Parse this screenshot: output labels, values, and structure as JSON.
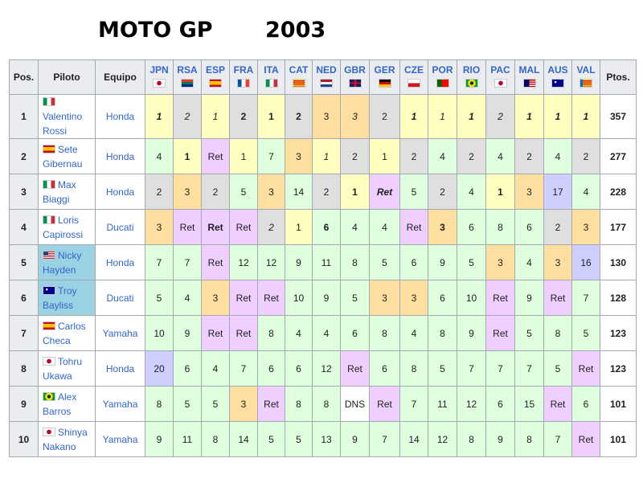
{
  "title": {
    "main": "MOTO GP",
    "year": "2003"
  },
  "headers": {
    "pos": "Pos.",
    "rider": "Piloto",
    "team": "Equipo",
    "points": "Ptos."
  },
  "races": [
    {
      "code": "JPN",
      "flag": "japan-flag-icon"
    },
    {
      "code": "RSA",
      "flag": "south-africa-flag-icon"
    },
    {
      "code": "ESP",
      "flag": "spain-flag-icon"
    },
    {
      "code": "FRA",
      "flag": "france-flag-icon"
    },
    {
      "code": "ITA",
      "flag": "italy-flag-icon"
    },
    {
      "code": "CAT",
      "flag": "catalonia-flag-icon"
    },
    {
      "code": "NED",
      "flag": "netherlands-flag-icon"
    },
    {
      "code": "GBR",
      "flag": "uk-flag-icon"
    },
    {
      "code": "GER",
      "flag": "germany-flag-icon"
    },
    {
      "code": "CZE",
      "flag": "czech-flag-icon"
    },
    {
      "code": "POR",
      "flag": "portugal-flag-icon"
    },
    {
      "code": "RIO",
      "flag": "brazil-flag-icon"
    },
    {
      "code": "PAC",
      "flag": "japan-flag-icon"
    },
    {
      "code": "MAL",
      "flag": "malaysia-flag-icon"
    },
    {
      "code": "AUS",
      "flag": "australia-flag-icon"
    },
    {
      "code": "VAL",
      "flag": "valencia-flag-icon"
    }
  ],
  "legend_colors": {
    "first": "#ffffbf",
    "second": "#dfdfdf",
    "third": "#ffdf9f",
    "points": "#dfffdf",
    "retired": "#efcfff",
    "no_points": "#cfcfff",
    "dns": "#ffffff",
    "rookie": "#9bd2e3"
  },
  "rows": [
    {
      "pos": "1",
      "first": "Valentino",
      "last": "Rossi",
      "flag": "italy-flag-icon",
      "team": "Honda",
      "points": "357",
      "results": [
        [
          "1",
          "c1",
          "bi"
        ],
        [
          "2",
          "c2",
          "i"
        ],
        [
          "1",
          "c1",
          "i"
        ],
        [
          "2",
          "c2",
          "b"
        ],
        [
          "1",
          "c1",
          "b"
        ],
        [
          "2",
          "c2",
          "b"
        ],
        [
          "3",
          "c3",
          ""
        ],
        [
          "3",
          "c3",
          "i"
        ],
        [
          "2",
          "c2",
          ""
        ],
        [
          "1",
          "c1",
          "bi"
        ],
        [
          "1",
          "c1",
          "i"
        ],
        [
          "1",
          "c1",
          "bi"
        ],
        [
          "2",
          "c2",
          "i"
        ],
        [
          "1",
          "c1",
          "bi"
        ],
        [
          "1",
          "c1",
          "bi"
        ],
        [
          "1",
          "c1",
          "bi"
        ]
      ]
    },
    {
      "pos": "2",
      "first": "Sete",
      "last": "Gibernau",
      "flag": "spain-flag-icon",
      "team": "Honda",
      "points": "277",
      "results": [
        [
          "4",
          "cp",
          ""
        ],
        [
          "1",
          "c1",
          "b"
        ],
        [
          "Ret",
          "cr",
          ""
        ],
        [
          "1",
          "c1",
          ""
        ],
        [
          "7",
          "cp",
          ""
        ],
        [
          "3",
          "c3",
          ""
        ],
        [
          "1",
          "c1",
          "i"
        ],
        [
          "2",
          "c2",
          ""
        ],
        [
          "1",
          "c1",
          ""
        ],
        [
          "2",
          "c2",
          ""
        ],
        [
          "4",
          "cp",
          ""
        ],
        [
          "2",
          "c2",
          ""
        ],
        [
          "4",
          "cp",
          ""
        ],
        [
          "2",
          "c2",
          ""
        ],
        [
          "4",
          "cp",
          ""
        ],
        [
          "2",
          "c2",
          ""
        ]
      ]
    },
    {
      "pos": "3",
      "first": "Max",
      "last": "Biaggi",
      "flag": "italy-flag-icon",
      "team": "Honda",
      "points": "228",
      "results": [
        [
          "2",
          "c2",
          ""
        ],
        [
          "3",
          "c3",
          ""
        ],
        [
          "2",
          "c2",
          ""
        ],
        [
          "5",
          "cp",
          ""
        ],
        [
          "3",
          "c3",
          ""
        ],
        [
          "14",
          "cp",
          ""
        ],
        [
          "2",
          "c2",
          ""
        ],
        [
          "1",
          "c1",
          "b"
        ],
        [
          "Ret",
          "cr",
          "bi"
        ],
        [
          "5",
          "cp",
          ""
        ],
        [
          "2",
          "c2",
          ""
        ],
        [
          "4",
          "cp",
          ""
        ],
        [
          "1",
          "c1",
          "b"
        ],
        [
          "3",
          "c3",
          ""
        ],
        [
          "17",
          "cn",
          ""
        ],
        [
          "4",
          "cp",
          ""
        ]
      ]
    },
    {
      "pos": "4",
      "first": "Loris",
      "last": "Capirossi",
      "flag": "italy-flag-icon",
      "team": "Ducati",
      "points": "177",
      "results": [
        [
          "3",
          "c3",
          ""
        ],
        [
          "Ret",
          "cr",
          ""
        ],
        [
          "Ret",
          "cr",
          "b"
        ],
        [
          "Ret",
          "cr",
          ""
        ],
        [
          "2",
          "c2",
          "i"
        ],
        [
          "1",
          "c1",
          ""
        ],
        [
          "6",
          "cp",
          "b"
        ],
        [
          "4",
          "cp",
          ""
        ],
        [
          "4",
          "cp",
          ""
        ],
        [
          "Ret",
          "cr",
          ""
        ],
        [
          "3",
          "c3",
          "b"
        ],
        [
          "6",
          "cp",
          ""
        ],
        [
          "8",
          "cp",
          ""
        ],
        [
          "6",
          "cp",
          ""
        ],
        [
          "2",
          "c2",
          ""
        ],
        [
          "3",
          "c3",
          ""
        ]
      ]
    },
    {
      "pos": "5",
      "first": "Nicky",
      "last": "Hayden",
      "flag": "usa-flag-icon",
      "team": "Honda",
      "points": "130",
      "rookie": true,
      "results": [
        [
          "7",
          "cp",
          ""
        ],
        [
          "7",
          "cp",
          ""
        ],
        [
          "Ret",
          "cr",
          ""
        ],
        [
          "12",
          "cp",
          ""
        ],
        [
          "12",
          "cp",
          ""
        ],
        [
          "9",
          "cp",
          ""
        ],
        [
          "11",
          "cp",
          ""
        ],
        [
          "8",
          "cp",
          ""
        ],
        [
          "5",
          "cp",
          ""
        ],
        [
          "6",
          "cp",
          ""
        ],
        [
          "9",
          "cp",
          ""
        ],
        [
          "5",
          "cp",
          ""
        ],
        [
          "3",
          "c3",
          ""
        ],
        [
          "4",
          "cp",
          ""
        ],
        [
          "3",
          "c3",
          ""
        ],
        [
          "16",
          "cn",
          ""
        ]
      ]
    },
    {
      "pos": "6",
      "first": "Troy",
      "last": "Bayliss",
      "flag": "australia-flag-icon",
      "team": "Ducati",
      "points": "128",
      "rookie": true,
      "results": [
        [
          "5",
          "cp",
          ""
        ],
        [
          "4",
          "cp",
          ""
        ],
        [
          "3",
          "c3",
          ""
        ],
        [
          "Ret",
          "cr",
          ""
        ],
        [
          "Ret",
          "cr",
          ""
        ],
        [
          "10",
          "cp",
          ""
        ],
        [
          "9",
          "cp",
          ""
        ],
        [
          "5",
          "cp",
          ""
        ],
        [
          "3",
          "c3",
          ""
        ],
        [
          "3",
          "c3",
          ""
        ],
        [
          "6",
          "cp",
          ""
        ],
        [
          "10",
          "cp",
          ""
        ],
        [
          "Ret",
          "cr",
          ""
        ],
        [
          "9",
          "cp",
          ""
        ],
        [
          "Ret",
          "cr",
          ""
        ],
        [
          "7",
          "cp",
          ""
        ]
      ]
    },
    {
      "pos": "7",
      "first": "Carlos",
      "last": "Checa",
      "flag": "spain-flag-icon",
      "team": "Yamaha",
      "points": "123",
      "results": [
        [
          "10",
          "cp",
          ""
        ],
        [
          "9",
          "cp",
          ""
        ],
        [
          "Ret",
          "cr",
          ""
        ],
        [
          "Ret",
          "cr",
          ""
        ],
        [
          "8",
          "cp",
          ""
        ],
        [
          "4",
          "cp",
          ""
        ],
        [
          "4",
          "cp",
          ""
        ],
        [
          "6",
          "cp",
          ""
        ],
        [
          "8",
          "cp",
          ""
        ],
        [
          "4",
          "cp",
          ""
        ],
        [
          "8",
          "cp",
          ""
        ],
        [
          "9",
          "cp",
          ""
        ],
        [
          "Ret",
          "cr",
          ""
        ],
        [
          "5",
          "cp",
          ""
        ],
        [
          "8",
          "cp",
          ""
        ],
        [
          "5",
          "cp",
          ""
        ]
      ]
    },
    {
      "pos": "8",
      "first": "Tohru",
      "last": "Ukawa",
      "flag": "japan-flag-icon",
      "team": "Honda",
      "points": "123",
      "results": [
        [
          "20",
          "cn",
          ""
        ],
        [
          "6",
          "cp",
          ""
        ],
        [
          "4",
          "cp",
          ""
        ],
        [
          "7",
          "cp",
          ""
        ],
        [
          "6",
          "cp",
          ""
        ],
        [
          "6",
          "cp",
          ""
        ],
        [
          "12",
          "cp",
          ""
        ],
        [
          "Ret",
          "cr",
          ""
        ],
        [
          "6",
          "cp",
          ""
        ],
        [
          "8",
          "cp",
          ""
        ],
        [
          "5",
          "cp",
          ""
        ],
        [
          "7",
          "cp",
          ""
        ],
        [
          "7",
          "cp",
          ""
        ],
        [
          "7",
          "cp",
          ""
        ],
        [
          "5",
          "cp",
          ""
        ],
        [
          "Ret",
          "cr",
          ""
        ]
      ]
    },
    {
      "pos": "9",
      "first": "Alex",
      "last": "Barros",
      "flag": "brazil-flag-icon",
      "team": "Yamaha",
      "points": "101",
      "results": [
        [
          "8",
          "cp",
          ""
        ],
        [
          "5",
          "cp",
          ""
        ],
        [
          "5",
          "cp",
          ""
        ],
        [
          "3",
          "c3",
          ""
        ],
        [
          "Ret",
          "cr",
          ""
        ],
        [
          "8",
          "cp",
          ""
        ],
        [
          "8",
          "cp",
          ""
        ],
        [
          "DNS",
          "cd",
          ""
        ],
        [
          "Ret",
          "cr",
          ""
        ],
        [
          "7",
          "cp",
          ""
        ],
        [
          "11",
          "cp",
          ""
        ],
        [
          "12",
          "cp",
          ""
        ],
        [
          "6",
          "cp",
          ""
        ],
        [
          "15",
          "cp",
          ""
        ],
        [
          "Ret",
          "cr",
          ""
        ],
        [
          "6",
          "cp",
          ""
        ]
      ]
    },
    {
      "pos": "10",
      "first": "Shinya",
      "last": "Nakano",
      "flag": "japan-flag-icon",
      "team": "Yamaha",
      "points": "101",
      "results": [
        [
          "9",
          "cp",
          ""
        ],
        [
          "11",
          "cp",
          ""
        ],
        [
          "8",
          "cp",
          ""
        ],
        [
          "14",
          "cp",
          ""
        ],
        [
          "5",
          "cp",
          ""
        ],
        [
          "5",
          "cp",
          ""
        ],
        [
          "13",
          "cp",
          ""
        ],
        [
          "9",
          "cp",
          ""
        ],
        [
          "7",
          "cp",
          ""
        ],
        [
          "14",
          "cp",
          ""
        ],
        [
          "12",
          "cp",
          ""
        ],
        [
          "8",
          "cp",
          ""
        ],
        [
          "9",
          "cp",
          ""
        ],
        [
          "8",
          "cp",
          ""
        ],
        [
          "7",
          "cp",
          ""
        ],
        [
          "Ret",
          "cr",
          ""
        ]
      ]
    }
  ]
}
